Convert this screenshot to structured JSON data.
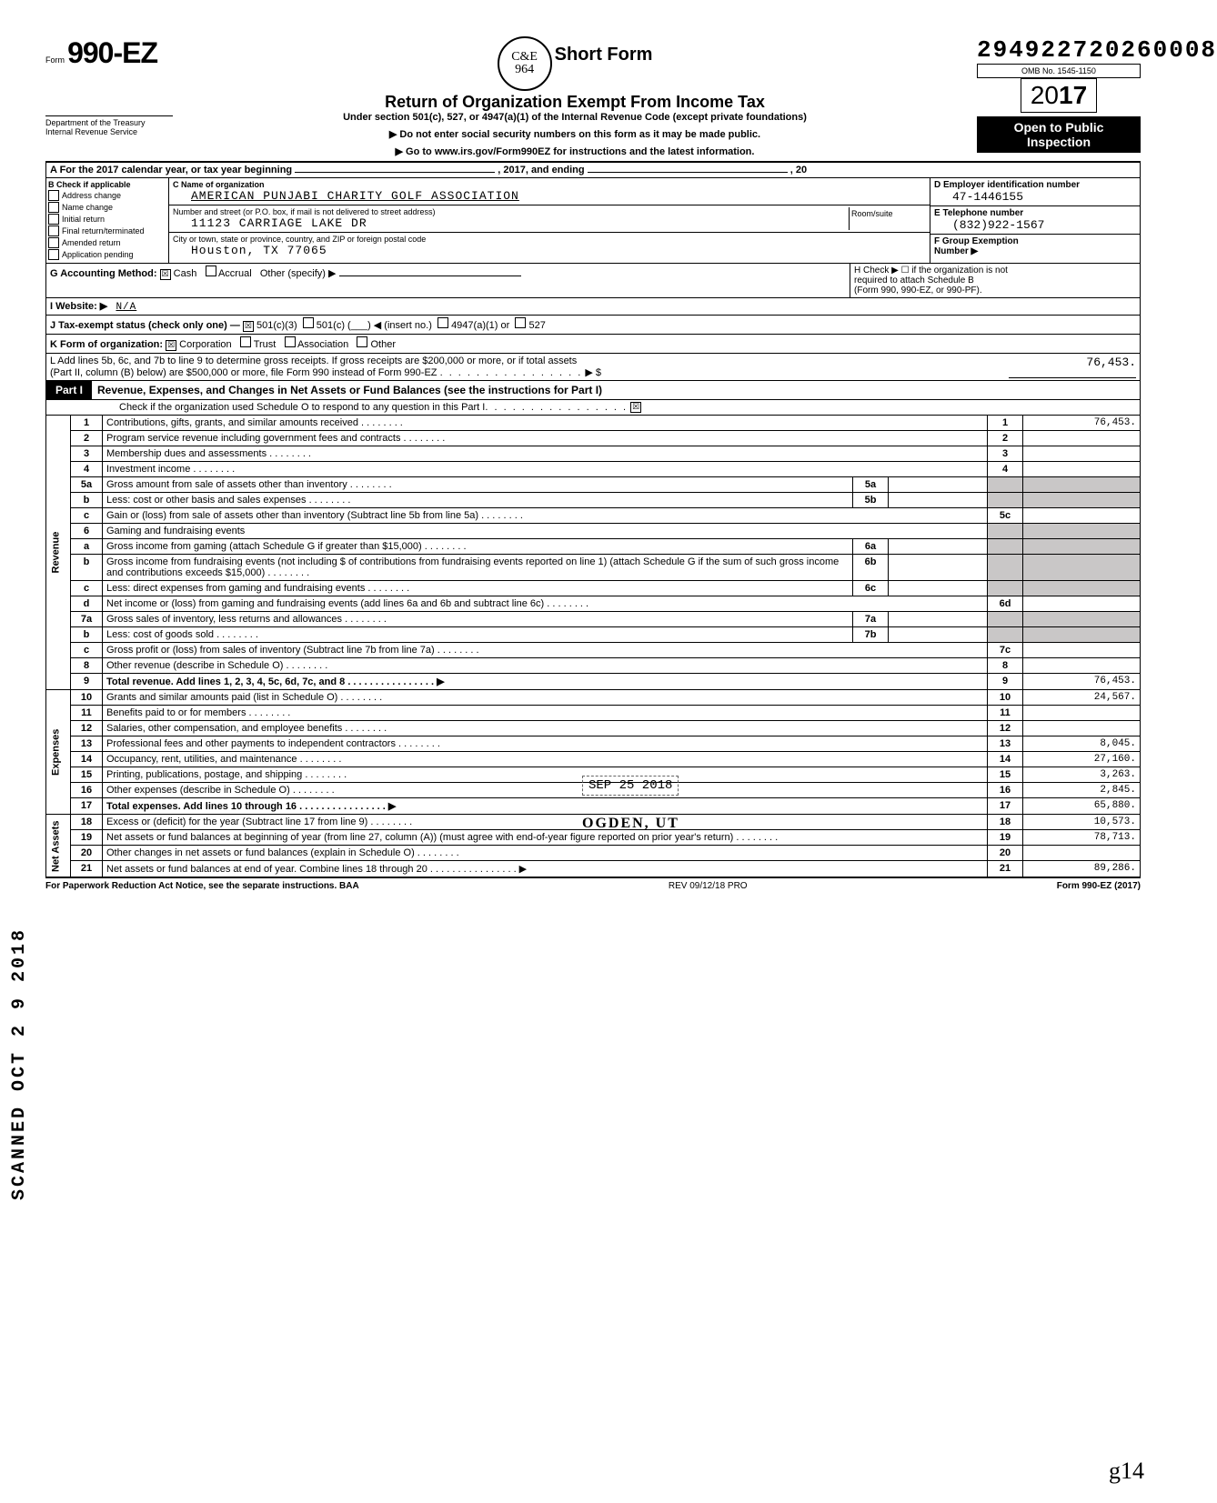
{
  "header": {
    "form_prefix": "Form",
    "form_number": "990-EZ",
    "circle_line1": "C&E",
    "circle_line2": "964",
    "short_form": "Short Form",
    "return_title": "Return of Organization Exempt From Income Tax",
    "under_section": "Under section 501(c), 527, or 4947(a)(1) of the Internal Revenue Code (except private foundations)",
    "arrow1": "▶ Do not enter social security numbers on this form as it may be made public.",
    "arrow2": "▶ Go to www.irs.gov/Form990EZ for instructions and the latest information.",
    "dept1": "Department of the Treasury",
    "dept2": "Internal Revenue Service",
    "handwritten_id": "294922720260008",
    "omb": "OMB No. 1545-1150",
    "year": "2017",
    "open1": "Open to Public",
    "open2": "Inspection"
  },
  "rowA": {
    "label": "A  For the 2017 calendar year, or tax year beginning",
    "mid": ", 2017, and ending",
    "end": ", 20"
  },
  "B": {
    "header": "B  Check if applicable",
    "items": [
      "Address change",
      "Name change",
      "Initial return",
      "Final return/terminated",
      "Amended return",
      "Application pending"
    ]
  },
  "C": {
    "name_label": "C  Name of organization",
    "name": "AMERICAN PUNJABI CHARITY GOLF ASSOCIATION",
    "street_label": "Number and street (or P.O. box, if mail is not delivered to street address)",
    "street": "11123 CARRIAGE LAKE DR",
    "room_label": "Room/suite",
    "city_label": "City or town, state or province, country, and ZIP or foreign postal code",
    "city": "Houston, TX 77065"
  },
  "D": {
    "ein_label": "D Employer identification number",
    "ein": "47-1446155",
    "tel_label": "E Telephone number",
    "tel": "(832)922-1567",
    "grp_label": "F Group Exemption",
    "grp_label2": "Number ▶"
  },
  "G": {
    "label": "G  Accounting Method:",
    "cash": "Cash",
    "accrual": "Accrual",
    "other": "Other (specify) ▶"
  },
  "H": {
    "label": "H  Check ▶ ☐ if the organization is not",
    "label2": "required to attach Schedule B",
    "label3": "(Form 990, 990-EZ, or 990-PF)."
  },
  "I": {
    "label": "I  Website: ▶",
    "val": "N/A"
  },
  "J": {
    "label": "J  Tax-exempt status (check only one) —",
    "opt1": "501(c)(3)",
    "opt2": "501(c) (",
    "opt2b": ") ◀ (insert no.)",
    "opt3": "4947(a)(1) or",
    "opt4": "527"
  },
  "K": {
    "label": "K  Form of organization:",
    "corp": "Corporation",
    "trust": "Trust",
    "assoc": "Association",
    "other": "Other"
  },
  "L": {
    "line1": "L  Add lines 5b, 6c, and 7b to line 9 to determine gross receipts. If gross receipts are $200,000 or more, or if total assets",
    "line2": "(Part II, column (B) below) are $500,000 or more, file Form 990 instead of Form 990-EZ",
    "arrow": "▶  $",
    "amount": "76,453."
  },
  "part1": {
    "tag": "Part I",
    "title": "Revenue, Expenses, and Changes in Net Assets or Fund Balances (see the instructions for Part I)",
    "check_line": "Check if the organization used Schedule O to respond to any question in this Part I"
  },
  "sides": {
    "revenue": "Revenue",
    "expenses": "Expenses",
    "netassets": "Net Assets",
    "scanned": "SCANNED OCT 2 9 2018"
  },
  "lines": [
    {
      "n": "1",
      "d": "Contributions, gifts, grants, and similar amounts received",
      "box": "1",
      "amt": "76,453."
    },
    {
      "n": "2",
      "d": "Program service revenue including government fees and contracts",
      "box": "2",
      "amt": ""
    },
    {
      "n": "3",
      "d": "Membership dues and assessments",
      "box": "3",
      "amt": ""
    },
    {
      "n": "4",
      "d": "Investment income",
      "box": "4",
      "amt": ""
    },
    {
      "n": "5a",
      "d": "Gross amount from sale of assets other than inventory",
      "ibox": "5a"
    },
    {
      "n": "b",
      "d": "Less: cost or other basis and sales expenses",
      "ibox": "5b"
    },
    {
      "n": "c",
      "d": "Gain or (loss) from sale of assets other than inventory (Subtract line 5b from line 5a)",
      "box": "5c",
      "amt": ""
    },
    {
      "n": "6",
      "d": "Gaming and fundraising events"
    },
    {
      "n": "a",
      "d": "Gross income from gaming (attach Schedule G if greater than $15,000)",
      "ibox": "6a"
    },
    {
      "n": "b",
      "d": "Gross income from fundraising events (not including  $                         of contributions from fundraising events reported on line 1) (attach Schedule G if the sum of such gross income and contributions exceeds $15,000)",
      "ibox": "6b"
    },
    {
      "n": "c",
      "d": "Less: direct expenses from gaming and fundraising events",
      "ibox": "6c"
    },
    {
      "n": "d",
      "d": "Net income or (loss) from gaming and fundraising events (add lines 6a and 6b and subtract line 6c)",
      "box": "6d",
      "amt": ""
    },
    {
      "n": "7a",
      "d": "Gross sales of inventory, less returns and allowances",
      "ibox": "7a"
    },
    {
      "n": "b",
      "d": "Less: cost of goods sold",
      "ibox": "7b"
    },
    {
      "n": "c",
      "d": "Gross profit or (loss) from sales of inventory (Subtract line 7b from line 7a)",
      "box": "7c",
      "amt": ""
    },
    {
      "n": "8",
      "d": "Other revenue (describe in Schedule O)",
      "box": "8",
      "amt": ""
    },
    {
      "n": "9",
      "d": "Total revenue. Add lines 1, 2, 3, 4, 5c, 6d, 7c, and 8",
      "box": "9",
      "amt": "76,453.",
      "bold": true,
      "arrow": true
    },
    {
      "n": "10",
      "d": "Grants and similar amounts paid (list in Schedule O)",
      "box": "10",
      "amt": "24,567."
    },
    {
      "n": "11",
      "d": "Benefits paid to or for members",
      "box": "11",
      "amt": ""
    },
    {
      "n": "12",
      "d": "Salaries, other compensation, and employee benefits",
      "box": "12",
      "amt": ""
    },
    {
      "n": "13",
      "d": "Professional fees and other payments to independent contractors",
      "box": "13",
      "amt": "8,045."
    },
    {
      "n": "14",
      "d": "Occupancy, rent, utilities, and maintenance",
      "box": "14",
      "amt": "27,160."
    },
    {
      "n": "15",
      "d": "Printing, publications, postage, and shipping",
      "box": "15",
      "amt": "3,263."
    },
    {
      "n": "16",
      "d": "Other expenses (describe in Schedule O)",
      "box": "16",
      "amt": "2,845."
    },
    {
      "n": "17",
      "d": "Total expenses. Add lines 10 through 16",
      "box": "17",
      "amt": "65,880.",
      "bold": true,
      "arrow": true
    },
    {
      "n": "18",
      "d": "Excess or (deficit) for the year (Subtract line 17 from line 9)",
      "box": "18",
      "amt": "10,573."
    },
    {
      "n": "19",
      "d": "Net assets or fund balances at beginning of year (from line 27, column (A)) (must agree with end-of-year figure reported on prior year's return)",
      "box": "19",
      "amt": "78,713."
    },
    {
      "n": "20",
      "d": "Other changes in net assets or fund balances (explain in Schedule O)",
      "box": "20",
      "amt": ""
    },
    {
      "n": "21",
      "d": "Net assets or fund balances at end of year. Combine lines 18 through 20",
      "box": "21",
      "amt": "89,286.",
      "arrow": true
    }
  ],
  "stamps": {
    "date": "SEP 25 2018",
    "ogden": "OGDEN, UT",
    "init": "g14"
  },
  "footer": {
    "left": "For Paperwork Reduction Act Notice, see the separate instructions. BAA",
    "mid": "REV 09/12/18 PRO",
    "right": "Form 990-EZ (2017)"
  },
  "checkmark": "☒"
}
